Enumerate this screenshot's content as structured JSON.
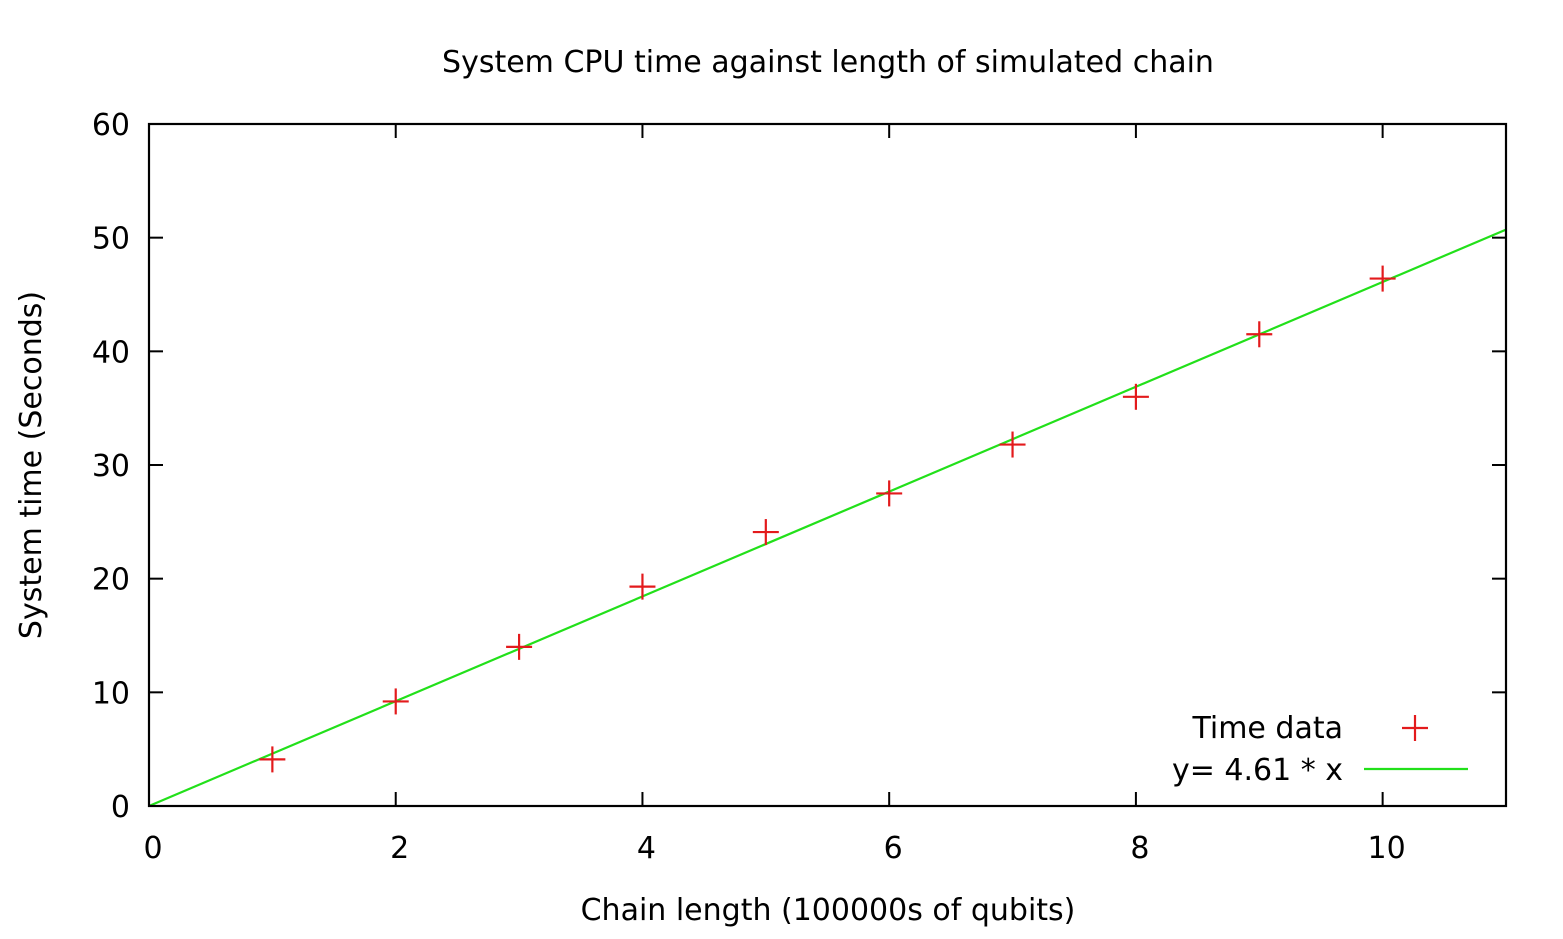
{
  "chart_data": {
    "type": "scatter",
    "title": "System CPU time against length of simulated chain",
    "xlabel": "Chain length (100000s of qubits)",
    "ylabel": "System time (Seconds)",
    "xlim": [
      0,
      11
    ],
    "ylim": [
      0,
      60
    ],
    "x_ticks": [
      "0",
      "2",
      "4",
      "6",
      "8",
      "10"
    ],
    "y_ticks": [
      "0",
      "10",
      "20",
      "30",
      "40",
      "50",
      "60"
    ],
    "grid": false,
    "legend_position": "bottom-right",
    "series": [
      {
        "name": "Time data",
        "type": "scatter",
        "marker": "plus",
        "color": "#e31a1c",
        "x": [
          1,
          2,
          3,
          4,
          5,
          6,
          7,
          8,
          9,
          10
        ],
        "y": [
          4.1,
          9.2,
          14.0,
          19.3,
          24.1,
          27.5,
          31.8,
          36.0,
          41.5,
          46.4
        ]
      },
      {
        "name": "y= 4.61 * x",
        "type": "line",
        "color": "#22e01a",
        "slope": 4.61,
        "intercept": 0
      }
    ]
  }
}
